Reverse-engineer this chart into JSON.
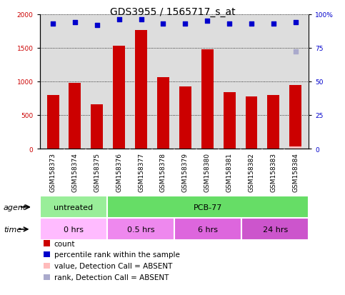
{
  "title": "GDS3955 / 1565717_s_at",
  "samples": [
    "GSM158373",
    "GSM158374",
    "GSM158375",
    "GSM158376",
    "GSM158377",
    "GSM158378",
    "GSM158379",
    "GSM158380",
    "GSM158381",
    "GSM158382",
    "GSM158383",
    "GSM158384"
  ],
  "counts": [
    800,
    975,
    660,
    1530,
    1760,
    1060,
    920,
    1480,
    840,
    780,
    800,
    950
  ],
  "percentile_ranks": [
    93,
    94,
    92,
    96,
    96,
    93,
    93,
    95,
    93,
    93,
    93,
    94
  ],
  "absent_value": 30,
  "absent_rank": 72,
  "absent_value_idx": 11,
  "absent_rank_idx": 11,
  "bar_color": "#cc0000",
  "dot_color": "#0000cc",
  "absent_val_color": "#ffbbbb",
  "absent_rank_color": "#aaaacc",
  "ylim_left": [
    0,
    2000
  ],
  "ylim_right": [
    0,
    100
  ],
  "yticks_left": [
    0,
    500,
    1000,
    1500,
    2000
  ],
  "yticks_right": [
    0,
    25,
    50,
    75,
    100
  ],
  "agent_groups": [
    {
      "label": "untreated",
      "start": 0,
      "end": 3,
      "color": "#99ee99"
    },
    {
      "label": "PCB-77",
      "start": 3,
      "end": 12,
      "color": "#66dd66"
    }
  ],
  "time_groups": [
    {
      "label": "0 hrs",
      "start": 0,
      "end": 3,
      "color": "#ffbbff"
    },
    {
      "label": "0.5 hrs",
      "start": 3,
      "end": 6,
      "color": "#ee88ee"
    },
    {
      "label": "6 hrs",
      "start": 6,
      "end": 9,
      "color": "#dd66dd"
    },
    {
      "label": "24 hrs",
      "start": 9,
      "end": 12,
      "color": "#cc55cc"
    }
  ],
  "legend_items": [
    {
      "color": "#cc0000",
      "label": "count"
    },
    {
      "color": "#0000cc",
      "label": "percentile rank within the sample"
    },
    {
      "color": "#ffbbbb",
      "label": "value, Detection Call = ABSENT"
    },
    {
      "color": "#aaaacc",
      "label": "rank, Detection Call = ABSENT"
    }
  ],
  "bar_width": 0.55,
  "plot_bg": "#dddddd",
  "grid_color": "black",
  "grid_style": "dotted",
  "title_fontsize": 10,
  "tick_fontsize": 6.5,
  "label_fontsize": 8,
  "legend_fontsize": 7.5
}
